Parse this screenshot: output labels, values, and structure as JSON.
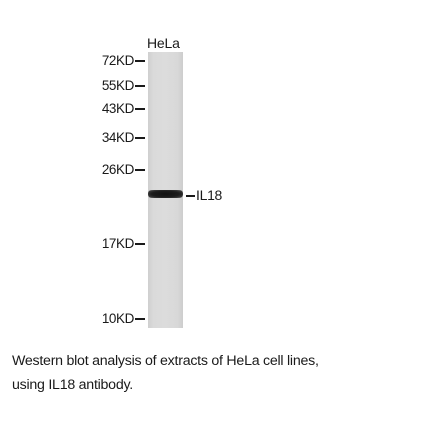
{
  "blot": {
    "lane_label": "HeLa",
    "band_label": "IL18",
    "markers": [
      "72KD",
      "55KD",
      "43KD",
      "34KD",
      "26KD",
      "17KD",
      "10KD"
    ]
  },
  "caption": {
    "line1": "Western blot analysis of extracts of HeLa cell lines,",
    "line2": "using IL18 antibody."
  }
}
